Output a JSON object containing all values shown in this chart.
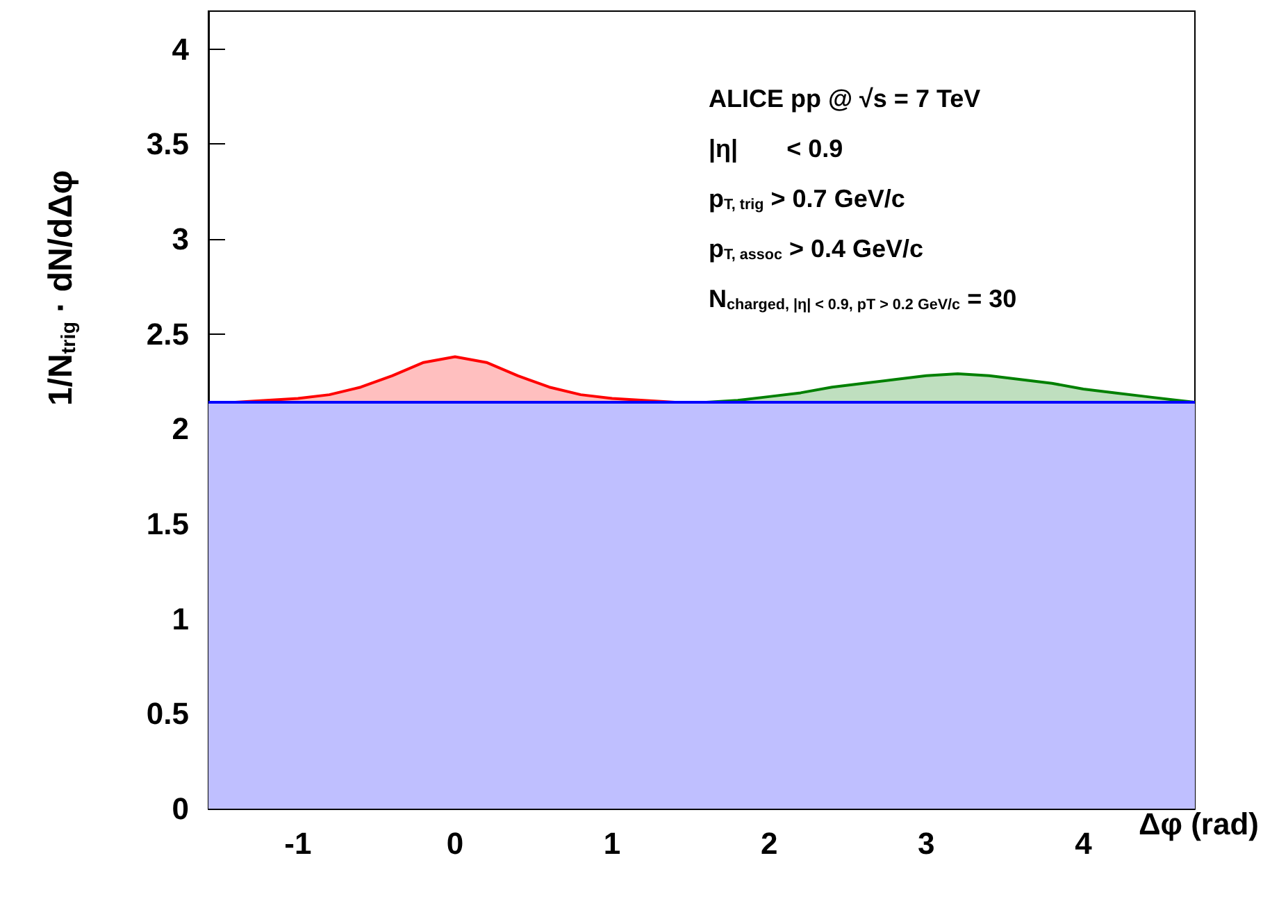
{
  "chart_data": {
    "type": "area",
    "stacked": true,
    "xlabel": "Δφ (rad)",
    "ylabel": "1/N$_{trig}$ · dN/dΔφ",
    "x": [
      -1.57,
      -1.4,
      -1.2,
      -1.0,
      -0.8,
      -0.6,
      -0.4,
      -0.2,
      0,
      0.2,
      0.4,
      0.6,
      0.8,
      1.0,
      1.2,
      1.4,
      1.6,
      1.8,
      2.0,
      2.2,
      2.4,
      2.6,
      2.8,
      3.0,
      3.2,
      3.4,
      3.6,
      3.8,
      4.0,
      4.2,
      4.4,
      4.6,
      4.71
    ],
    "series": [
      {
        "color": "#0000ff",
        "values": [
          2.14,
          2.14,
          2.14,
          2.14,
          2.14,
          2.14,
          2.14,
          2.14,
          2.14,
          2.14,
          2.14,
          2.14,
          2.14,
          2.14,
          2.14,
          2.14,
          2.14,
          2.14,
          2.14,
          2.14,
          2.14,
          2.14,
          2.14,
          2.14,
          2.14,
          2.14,
          2.14,
          2.14,
          2.14,
          2.14,
          2.14,
          2.14,
          2.14
        ]
      },
      {
        "color": "#ff0000",
        "values": [
          0,
          0,
          0.01,
          0.02,
          0.04,
          0.08,
          0.14,
          0.21,
          0.24,
          0.21,
          0.14,
          0.08,
          0.04,
          0.02,
          0.01,
          0,
          0,
          null,
          null,
          null,
          null,
          null,
          null,
          null,
          null,
          null,
          null,
          null,
          null,
          null,
          null,
          null,
          null
        ]
      },
      {
        "color": "#008000",
        "values": [
          null,
          null,
          null,
          null,
          null,
          null,
          null,
          null,
          null,
          null,
          null,
          null,
          null,
          null,
          null,
          null,
          0,
          0.01,
          0.03,
          0.05,
          0.08,
          0.1,
          0.12,
          0.14,
          0.15,
          0.14,
          0.12,
          0.1,
          0.07,
          0.05,
          0.03,
          0.01,
          0
        ]
      }
    ],
    "xlim": [
      -1.57,
      4.71
    ],
    "xticks": [
      -1,
      0,
      1,
      2,
      3,
      4
    ],
    "ylim": [
      0,
      4.2
    ],
    "yticks": [
      0,
      0.5,
      1,
      1.5,
      2,
      2.5,
      3,
      3.5,
      4
    ],
    "annotations": [
      "ALICE pp @ √s = 7 TeV",
      "|η|       < 0.9",
      "p$_{T, trig}$ > 0.7 GeV/c",
      "p$_{T, assoc}$ > 0.4 GeV/c",
      "N$_{charged, |η| < 0.9, pT > 0.2 GeV/c}$ = 30"
    ],
    "grid": false
  }
}
